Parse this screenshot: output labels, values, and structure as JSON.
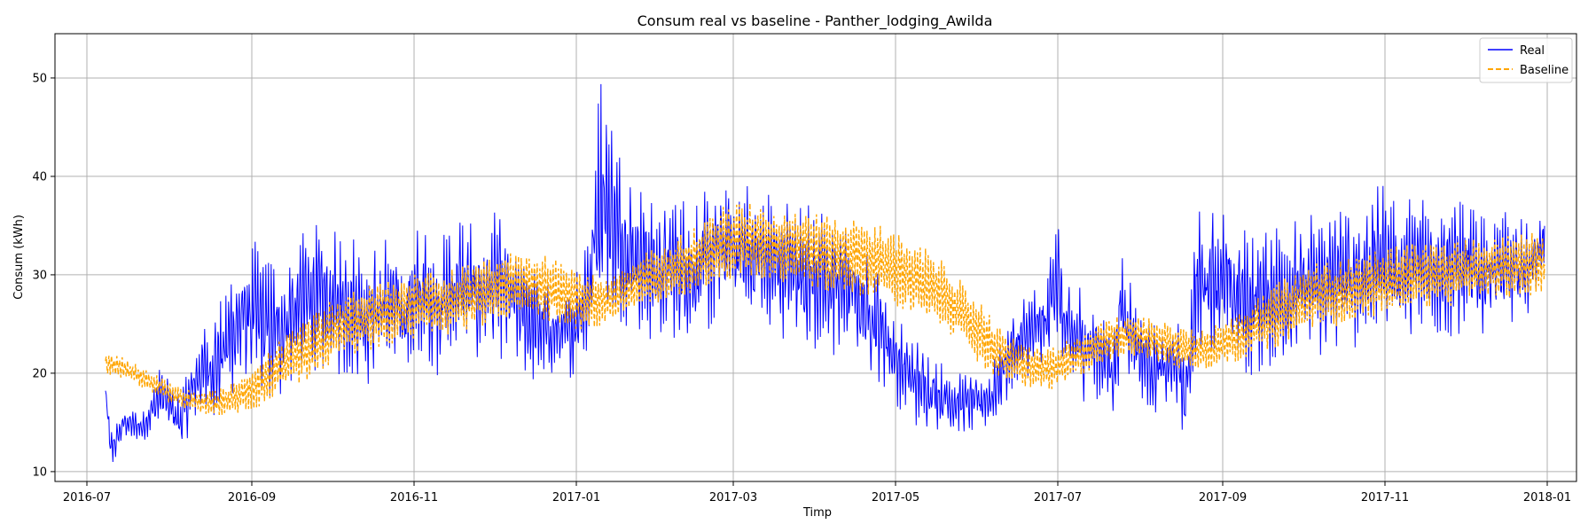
{
  "chart_data": {
    "type": "line",
    "title": "Consum real vs baseline - Panther_lodging_Awilda",
    "xlabel": "Timp",
    "ylabel": "Consum (kWh)",
    "xlim": [
      "2016-06-19",
      "2018-01-12"
    ],
    "ylim": [
      9,
      54.5
    ],
    "x_ticks": [
      "2016-07",
      "2016-09",
      "2016-11",
      "2017-01",
      "2017-03",
      "2017-05",
      "2017-07",
      "2017-09",
      "2017-11",
      "2018-01"
    ],
    "y_ticks": [
      10,
      20,
      30,
      40,
      50
    ],
    "grid": true,
    "legend_position": "top-right",
    "series": [
      {
        "name": "Real",
        "color": "#0000ff",
        "style": "solid",
        "x": [
          "2016-07-08",
          "2016-07-10",
          "2016-07-15",
          "2016-07-22",
          "2016-07-29",
          "2016-08-05",
          "2016-08-12",
          "2016-08-19",
          "2016-08-26",
          "2016-09-02",
          "2016-09-09",
          "2016-09-16",
          "2016-09-23",
          "2016-09-30",
          "2016-10-07",
          "2016-10-14",
          "2016-10-21",
          "2016-10-28",
          "2016-11-04",
          "2016-11-11",
          "2016-11-18",
          "2016-11-25",
          "2016-12-02",
          "2016-12-09",
          "2016-12-16",
          "2016-12-23",
          "2016-12-30",
          "2017-01-06",
          "2017-01-10",
          "2017-01-17",
          "2017-01-24",
          "2017-01-31",
          "2017-02-07",
          "2017-02-14",
          "2017-02-21",
          "2017-02-28",
          "2017-03-07",
          "2017-03-14",
          "2017-03-21",
          "2017-03-28",
          "2017-04-04",
          "2017-04-11",
          "2017-04-18",
          "2017-04-25",
          "2017-05-02",
          "2017-05-09",
          "2017-05-16",
          "2017-05-23",
          "2017-05-30",
          "2017-06-06",
          "2017-06-13",
          "2017-06-20",
          "2017-06-27",
          "2017-06-30",
          "2017-07-04",
          "2017-07-11",
          "2017-07-18",
          "2017-07-22",
          "2017-07-25",
          "2017-08-01",
          "2017-08-08",
          "2017-08-15",
          "2017-08-18",
          "2017-08-22",
          "2017-08-29",
          "2017-09-05",
          "2017-09-12",
          "2017-09-19",
          "2017-09-26",
          "2017-10-03",
          "2017-10-10",
          "2017-10-17",
          "2017-10-24",
          "2017-10-31",
          "2017-11-07",
          "2017-11-14",
          "2017-11-21",
          "2017-11-28",
          "2017-12-05",
          "2017-12-12",
          "2017-12-19",
          "2017-12-26",
          "2017-12-31"
        ],
        "y": [
          18,
          12,
          15,
          14.5,
          18,
          15,
          20,
          21,
          25,
          26,
          24,
          26,
          28,
          27,
          27,
          26,
          27,
          26,
          28,
          27,
          29,
          28,
          29,
          27,
          25,
          24,
          24,
          29,
          39,
          34,
          32,
          30,
          31,
          30,
          32,
          33,
          32,
          31,
          31,
          30,
          29,
          29,
          27,
          25,
          21,
          19,
          18,
          17,
          17,
          17.5,
          22,
          24,
          25,
          31,
          24,
          23,
          22,
          20,
          27,
          22,
          20,
          21,
          17,
          29,
          30,
          28,
          27,
          28,
          28,
          29,
          29,
          30,
          30,
          32,
          30,
          31,
          31,
          31,
          30,
          31,
          30,
          31,
          34
        ],
        "amplitude": [
          1,
          1.5,
          1,
          1,
          2,
          2,
          3,
          4,
          5,
          5,
          5,
          5,
          5,
          5,
          5,
          5,
          5,
          5,
          5,
          5,
          5,
          5,
          5,
          4,
          4,
          3,
          3,
          5,
          8,
          6,
          5,
          5,
          5,
          5,
          5,
          5,
          5,
          5,
          5,
          5,
          5,
          5,
          4,
          4,
          3,
          3,
          2.5,
          2,
          2,
          2,
          3,
          3,
          3,
          5,
          4,
          4,
          3,
          3,
          4,
          3,
          3,
          3,
          3,
          5,
          5,
          5,
          5,
          5,
          5,
          5,
          5,
          5,
          5,
          5,
          5,
          5,
          5,
          5,
          5,
          4,
          4,
          3,
          2
        ]
      },
      {
        "name": "Baseline",
        "color": "#ffa500",
        "style": "dashed",
        "x": [
          "2016-07-08",
          "2016-07-15",
          "2016-07-22",
          "2016-07-29",
          "2016-08-05",
          "2016-08-12",
          "2016-08-19",
          "2016-08-26",
          "2016-09-02",
          "2016-09-09",
          "2016-09-16",
          "2016-09-23",
          "2016-09-30",
          "2016-10-07",
          "2016-10-14",
          "2016-10-21",
          "2016-10-28",
          "2016-11-04",
          "2016-11-11",
          "2016-11-18",
          "2016-11-25",
          "2016-12-02",
          "2016-12-09",
          "2016-12-16",
          "2016-12-23",
          "2016-12-30",
          "2017-01-06",
          "2017-01-13",
          "2017-01-20",
          "2017-01-27",
          "2017-02-03",
          "2017-02-10",
          "2017-02-17",
          "2017-02-24",
          "2017-03-03",
          "2017-03-10",
          "2017-03-17",
          "2017-03-24",
          "2017-03-31",
          "2017-04-07",
          "2017-04-14",
          "2017-04-21",
          "2017-04-28",
          "2017-05-05",
          "2017-05-12",
          "2017-05-19",
          "2017-05-26",
          "2017-06-02",
          "2017-06-09",
          "2017-06-16",
          "2017-06-23",
          "2017-06-30",
          "2017-07-07",
          "2017-07-14",
          "2017-07-21",
          "2017-07-28",
          "2017-08-04",
          "2017-08-11",
          "2017-08-18",
          "2017-08-25",
          "2017-09-01",
          "2017-09-08",
          "2017-09-15",
          "2017-09-22",
          "2017-09-29",
          "2017-10-06",
          "2017-10-13",
          "2017-10-20",
          "2017-10-27",
          "2017-11-03",
          "2017-11-10",
          "2017-11-17",
          "2017-11-24",
          "2017-12-01",
          "2017-12-08",
          "2017-12-15",
          "2017-12-22",
          "2017-12-31"
        ],
        "y": [
          21,
          20.5,
          19.5,
          18.5,
          17.5,
          17,
          17,
          17.5,
          18.5,
          20,
          21.5,
          22.5,
          24,
          25,
          25.5,
          26,
          26.5,
          27,
          27,
          27.5,
          28,
          28.5,
          29,
          29,
          28.5,
          28,
          27,
          27.5,
          28.5,
          29.5,
          30,
          31,
          32,
          33,
          33.5,
          33.5,
          33,
          33,
          32.5,
          32,
          32,
          31.5,
          31,
          30,
          29,
          28,
          26,
          24,
          22,
          21,
          20.5,
          20.5,
          21.5,
          22.5,
          23.5,
          24,
          23.5,
          23,
          22.5,
          22.5,
          23,
          24,
          25,
          26,
          27,
          28,
          28,
          28.5,
          29,
          29.5,
          30,
          30,
          30,
          30.5,
          30.5,
          31,
          31,
          31.5
        ],
        "amplitude": [
          1,
          1,
          1,
          1,
          1,
          1,
          1.2,
          1.5,
          2,
          2.5,
          2.5,
          3,
          3,
          3,
          3,
          3,
          3,
          3,
          3,
          3,
          3,
          3,
          3,
          3,
          3,
          3,
          3,
          2,
          2,
          2.5,
          3,
          3,
          3,
          3.5,
          3.5,
          3.5,
          3.5,
          3.5,
          3.5,
          3.5,
          3.5,
          3.5,
          3.5,
          3.5,
          3.5,
          3,
          3,
          3,
          2.5,
          2,
          2,
          2,
          2,
          2,
          2,
          2,
          2,
          2,
          2,
          2,
          2,
          2.5,
          2.5,
          3,
          3,
          3,
          3,
          3,
          3,
          3,
          3,
          3,
          3,
          3,
          3,
          3,
          3,
          3
        ]
      }
    ]
  }
}
